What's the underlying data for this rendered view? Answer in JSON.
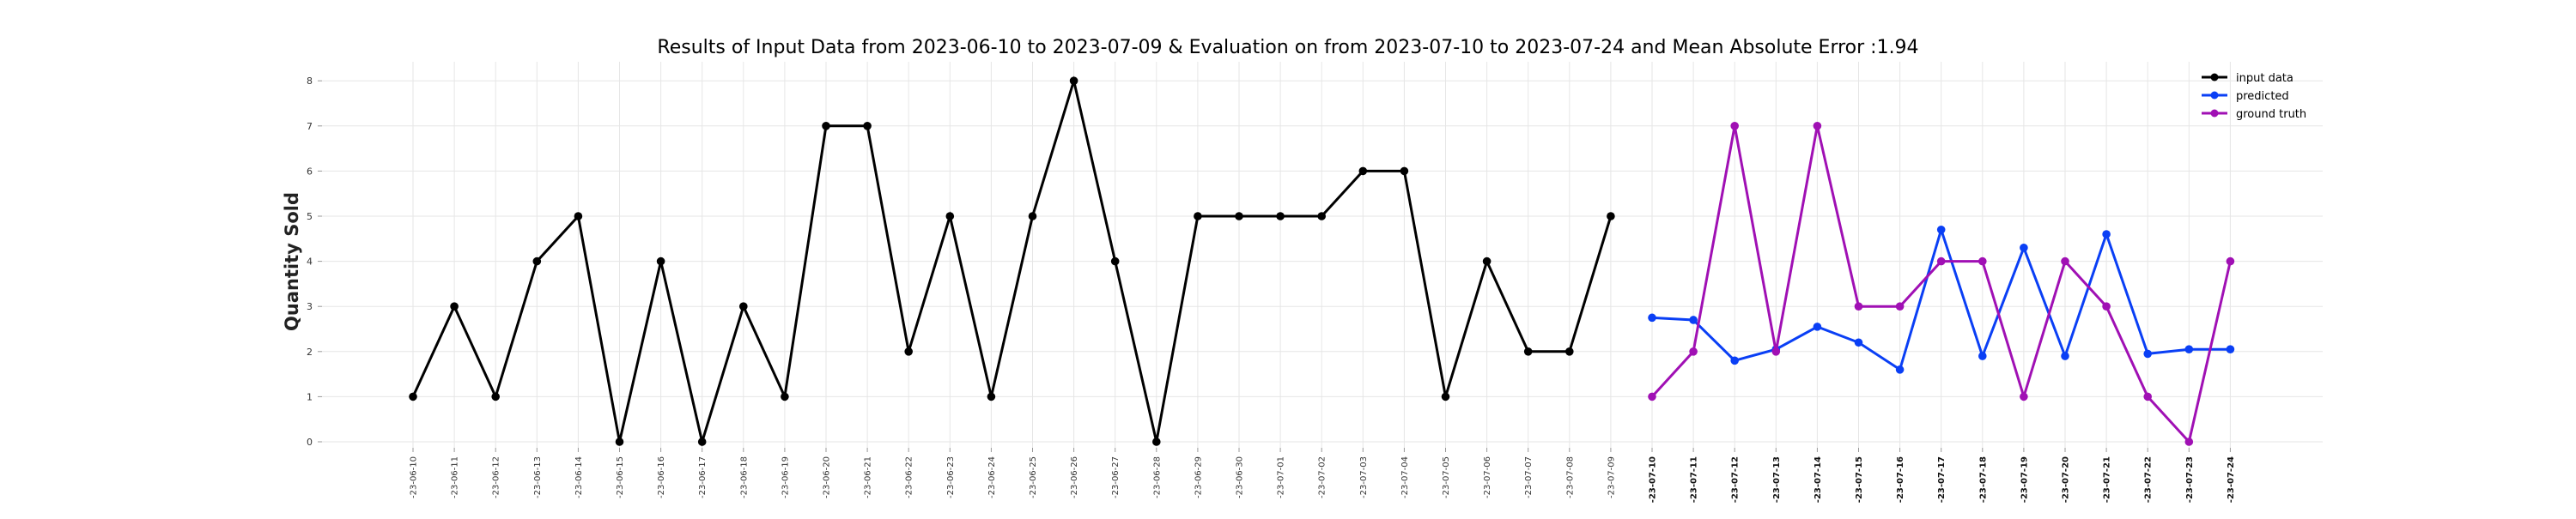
{
  "chart_data": {
    "type": "line",
    "title": "Results of Input Data from 2023-06-10 to 2023-07-09 & Evaluation on from 2023-07-10 to 2023-07-24 and Mean Absolute Error  :1.94",
    "ylabel": "Quantity Sold",
    "xlabel": "",
    "ylim": [
      0,
      8
    ],
    "yticks": [
      "0",
      "1",
      "2",
      "3",
      "4",
      "5",
      "6",
      "7",
      "8"
    ],
    "x_tick_labels": [
      "-23-06-10",
      "-23-06-11",
      "-23-06-12",
      "-23-06-13",
      "-23-06-14",
      "-23-06-15",
      "-23-06-16",
      "-23-06-17",
      "-23-06-18",
      "-23-06-19",
      "-23-06-20",
      "-23-06-21",
      "-23-06-22",
      "-23-06-23",
      "-23-06-24",
      "-23-06-25",
      "-23-06-26",
      "-23-06-27",
      "-23-06-28",
      "-23-06-29",
      "-23-06-30",
      "-23-07-01",
      "-23-07-02",
      "-23-07-03",
      "-23-07-04",
      "-23-07-05",
      "-23-07-06",
      "-23-07-07",
      "-23-07-08",
      "-23-07-09",
      "-23-07-10",
      "-23-07-11",
      "-23-07-12",
      "-23-07-13",
      "-23-07-14",
      "-23-07-15",
      "-23-07-16",
      "-23-07-17",
      "-23-07-18",
      "-23-07-19",
      "-23-07-20",
      "-23-07-21",
      "-23-07-22",
      "-23-07-23",
      "-23-07-24"
    ],
    "grid": true,
    "legend_position": "top-right",
    "series": [
      {
        "name": "input data",
        "color": "#000000",
        "x": [
          "2023-06-10",
          "2023-06-11",
          "2023-06-12",
          "2023-06-13",
          "2023-06-14",
          "2023-06-15",
          "2023-06-16",
          "2023-06-17",
          "2023-06-18",
          "2023-06-19",
          "2023-06-20",
          "2023-06-21",
          "2023-06-22",
          "2023-06-23",
          "2023-06-24",
          "2023-06-25",
          "2023-06-26",
          "2023-06-27",
          "2023-06-28",
          "2023-06-29",
          "2023-06-30",
          "2023-07-01",
          "2023-07-02",
          "2023-07-03",
          "2023-07-04",
          "2023-07-05",
          "2023-07-06",
          "2023-07-07",
          "2023-07-08",
          "2023-07-09"
        ],
        "values": [
          1,
          3,
          1,
          4,
          5,
          0,
          4,
          0,
          3,
          1,
          7,
          7,
          2,
          5,
          1,
          5,
          8,
          4,
          0,
          5,
          5,
          5,
          5,
          6,
          6,
          1,
          4,
          2,
          2,
          5
        ]
      },
      {
        "name": "predicted",
        "color": "#0a3ff5",
        "x": [
          "2023-07-10",
          "2023-07-11",
          "2023-07-12",
          "2023-07-13",
          "2023-07-14",
          "2023-07-15",
          "2023-07-16",
          "2023-07-17",
          "2023-07-18",
          "2023-07-19",
          "2023-07-20",
          "2023-07-21",
          "2023-07-22",
          "2023-07-23",
          "2023-07-24"
        ],
        "values": [
          2.75,
          2.7,
          1.8,
          2.05,
          2.55,
          2.2,
          1.6,
          4.7,
          1.9,
          4.3,
          1.9,
          4.6,
          1.95,
          2.05,
          2.05
        ]
      },
      {
        "name": "ground truth",
        "color": "#a010b4",
        "x": [
          "2023-07-10",
          "2023-07-11",
          "2023-07-12",
          "2023-07-13",
          "2023-07-14",
          "2023-07-15",
          "2023-07-16",
          "2023-07-17",
          "2023-07-18",
          "2023-07-19",
          "2023-07-20",
          "2023-07-21",
          "2023-07-22",
          "2023-07-23",
          "2023-07-24"
        ],
        "values": [
          1,
          2,
          7,
          2,
          7,
          3,
          3,
          4,
          4,
          1,
          4,
          3,
          1,
          0,
          4
        ]
      }
    ]
  }
}
